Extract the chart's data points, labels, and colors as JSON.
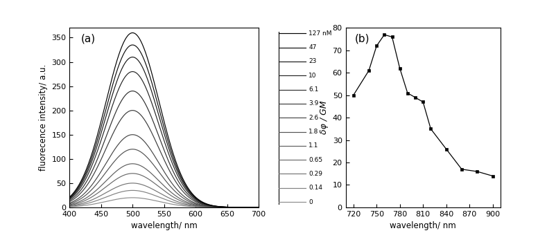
{
  "panel_a": {
    "xlabel": "wavelength/ nm",
    "ylabel": "fluorecence intensity/ a.u.",
    "xlim": [
      400,
      700
    ],
    "ylim": [
      0,
      370
    ],
    "yticks": [
      0,
      50,
      100,
      150,
      200,
      250,
      300,
      350
    ],
    "xticks": [
      400,
      450,
      500,
      550,
      600,
      650,
      700
    ],
    "peak_wavelength": 500,
    "peak_values": [
      20,
      35,
      50,
      70,
      90,
      120,
      150,
      200,
      240,
      280,
      310,
      335,
      360
    ],
    "sigma": 42,
    "legend_labels": [
      "127 nM",
      "47",
      "23",
      "10",
      "6.1",
      "3.9",
      "2.6",
      "1.8",
      "1.1",
      "0.65",
      "0.29",
      "0.14",
      "0"
    ],
    "label": "(a)"
  },
  "panel_b": {
    "xlabel": "wavelength/ nm",
    "ylabel": "δφ / GM",
    "xlim": [
      710,
      910
    ],
    "ylim": [
      0,
      80
    ],
    "yticks": [
      0,
      10,
      20,
      30,
      40,
      50,
      60,
      70,
      80
    ],
    "xticks": [
      720,
      750,
      780,
      810,
      840,
      870,
      900
    ],
    "wavelengths": [
      720,
      740,
      750,
      760,
      770,
      780,
      790,
      800,
      810,
      820,
      840,
      860,
      880,
      900
    ],
    "values": [
      50,
      61,
      72,
      77,
      76,
      62,
      51,
      49,
      47,
      35,
      26,
      17,
      16,
      14
    ],
    "label": "(b)"
  },
  "figure_bg": "#ffffff",
  "text_color": "#000000",
  "line_color": "#000000",
  "marker_color": "#000000",
  "tick_color": "#000000",
  "spine_color": "#000000"
}
